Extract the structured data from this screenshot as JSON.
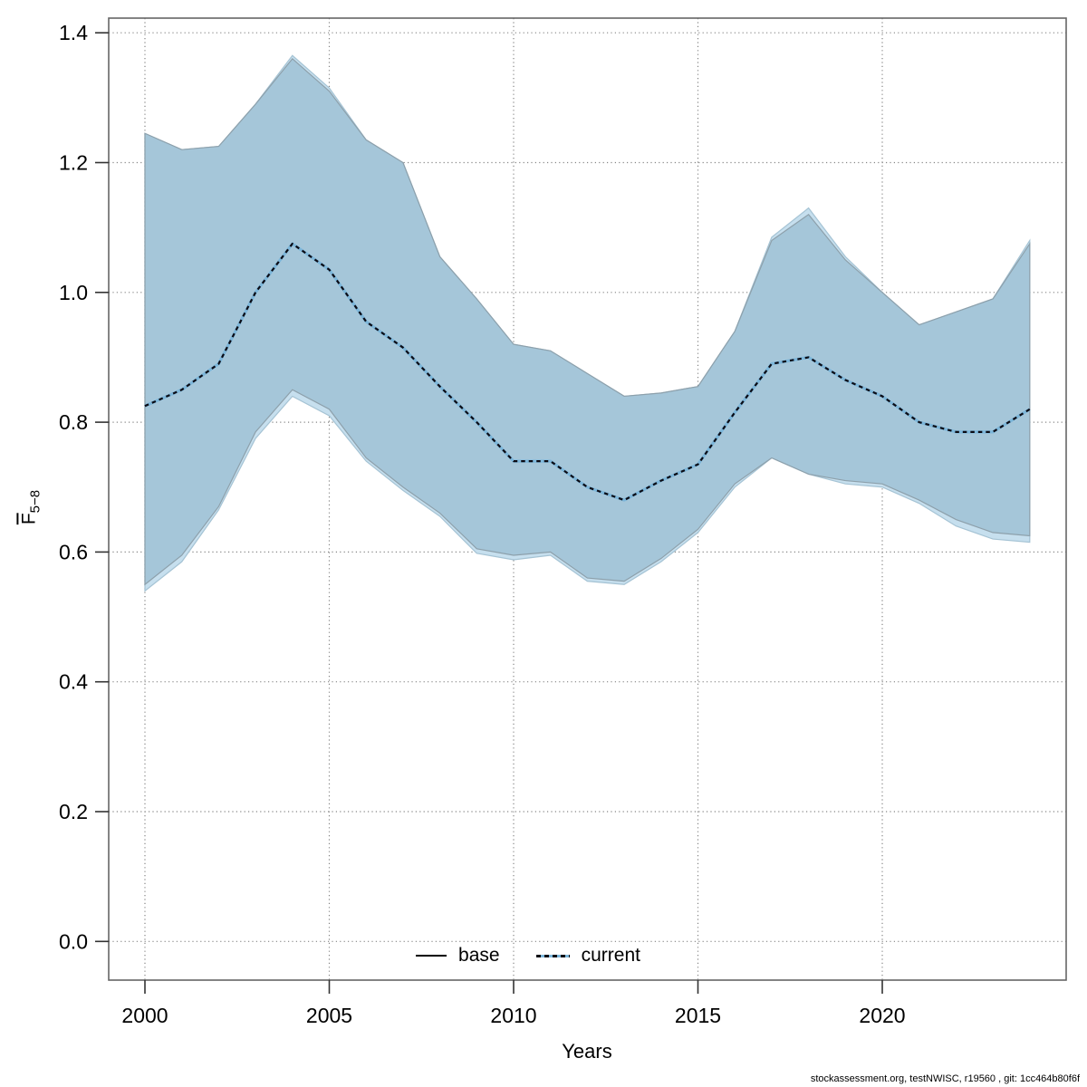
{
  "chart_data": {
    "type": "line",
    "title": "",
    "xlabel": "Years",
    "ylabel_main": "F",
    "ylabel_sub": "5−8",
    "caption": "stockassessment.org, testNWISC, r19560 , git: 1cc464b80f6f",
    "x": [
      2000,
      2001,
      2002,
      2003,
      2004,
      2005,
      2006,
      2007,
      2008,
      2009,
      2010,
      2011,
      2012,
      2013,
      2014,
      2015,
      2016,
      2017,
      2018,
      2019,
      2020,
      2021,
      2022,
      2023,
      2024
    ],
    "x_ticks": [
      "2000",
      "2005",
      "2010",
      "2015",
      "2020"
    ],
    "y_ticks": [
      "0.0",
      "0.2",
      "0.4",
      "0.6",
      "0.8",
      "1.0",
      "1.2",
      "1.4"
    ],
    "ylim": [
      0.0,
      1.4
    ],
    "grid": true,
    "legend_position": "bottom-center",
    "colors": {
      "base_band_fill": "#a5c6d9",
      "current_band_fill": "#c6dfee",
      "band_edge": "#8da0ab",
      "current_line": "#7cb6da",
      "current_dash": "#0b0b14",
      "base_line": "#000000",
      "grid": "#858585",
      "box": "#666666",
      "tick": "#333333"
    },
    "bands": [
      {
        "name": "current-ci",
        "fill": "#c6dfee",
        "edge": "#a5c3d4",
        "lo": [
          0.54,
          0.585,
          0.665,
          0.775,
          0.84,
          0.81,
          0.74,
          0.695,
          0.655,
          0.598,
          0.588,
          0.595,
          0.555,
          0.55,
          0.585,
          0.63,
          0.7,
          0.745,
          0.72,
          0.705,
          0.7,
          0.675,
          0.64,
          0.62,
          0.615
        ],
        "hi": [
          1.245,
          1.22,
          1.225,
          1.29,
          1.365,
          1.315,
          1.235,
          1.2,
          1.055,
          0.99,
          0.92,
          0.91,
          0.875,
          0.84,
          0.845,
          0.855,
          0.94,
          1.085,
          1.13,
          1.055,
          1.0,
          0.95,
          0.97,
          0.99,
          1.08
        ]
      },
      {
        "name": "base-ci",
        "fill": "#a5c6d9",
        "edge": "#8da0ab",
        "lo": [
          0.55,
          0.595,
          0.67,
          0.785,
          0.85,
          0.82,
          0.745,
          0.7,
          0.66,
          0.605,
          0.595,
          0.6,
          0.56,
          0.555,
          0.59,
          0.635,
          0.705,
          0.745,
          0.72,
          0.71,
          0.705,
          0.68,
          0.65,
          0.63,
          0.625
        ],
        "hi": [
          1.245,
          1.22,
          1.225,
          1.29,
          1.36,
          1.31,
          1.235,
          1.2,
          1.055,
          0.99,
          0.92,
          0.91,
          0.875,
          0.84,
          0.845,
          0.855,
          0.94,
          1.08,
          1.12,
          1.05,
          1.0,
          0.95,
          0.97,
          0.99,
          1.075
        ]
      }
    ],
    "series": [
      {
        "name": "base",
        "style": "solid",
        "color": "#000000",
        "values": [
          0.825,
          0.85,
          0.89,
          1.0,
          1.075,
          1.035,
          0.955,
          0.915,
          0.855,
          0.8,
          0.74,
          0.74,
          0.7,
          0.68,
          0.71,
          0.735,
          0.815,
          0.89,
          0.9,
          0.865,
          0.84,
          0.8,
          0.785,
          0.785,
          0.82
        ]
      },
      {
        "name": "current",
        "style": "dotted",
        "color": "#7cb6da",
        "dash_color": "#0b0b14",
        "values": [
          0.825,
          0.85,
          0.89,
          1.0,
          1.075,
          1.035,
          0.955,
          0.915,
          0.855,
          0.8,
          0.74,
          0.74,
          0.7,
          0.68,
          0.71,
          0.735,
          0.815,
          0.89,
          0.9,
          0.865,
          0.84,
          0.8,
          0.785,
          0.785,
          0.82
        ]
      }
    ]
  }
}
